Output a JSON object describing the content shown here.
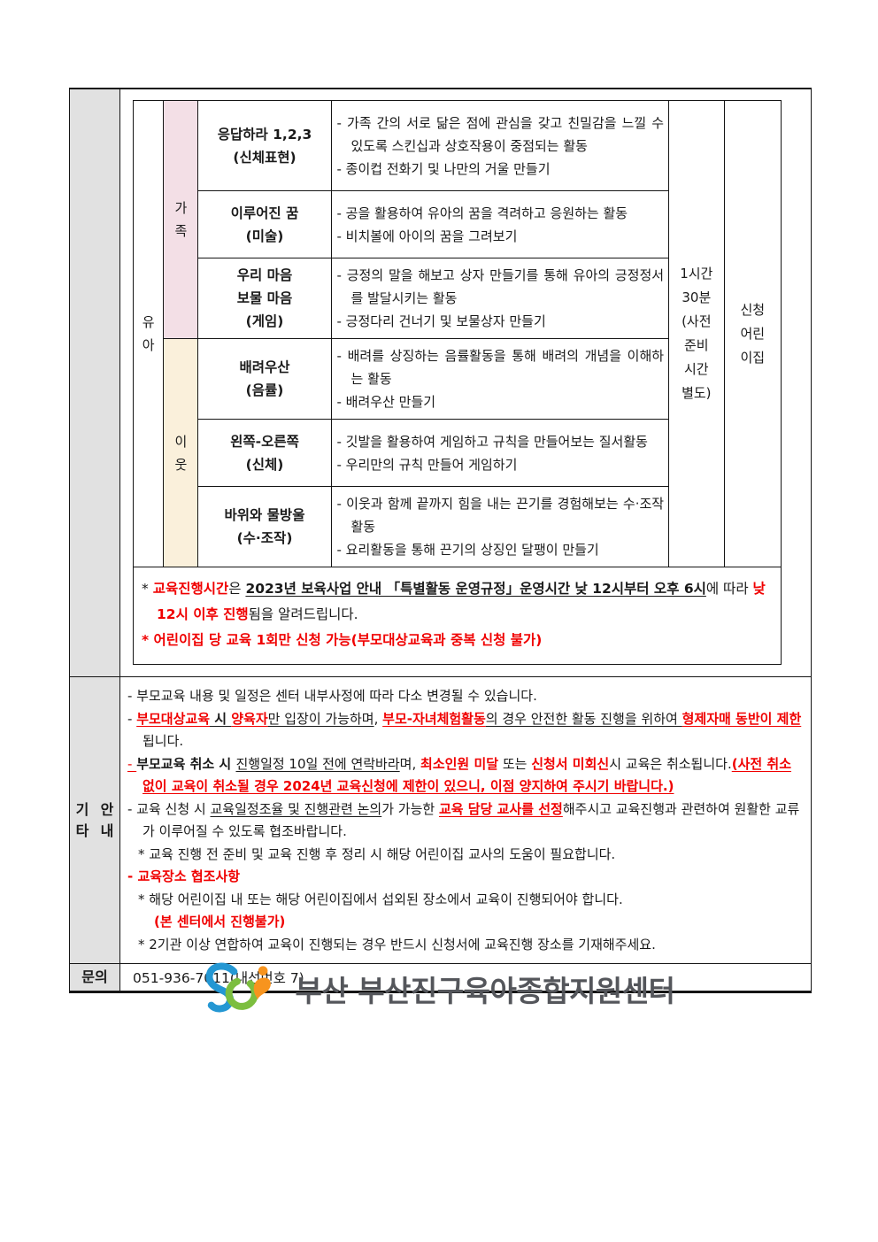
{
  "colors": {
    "accent_red": "#f00000",
    "family_row_pink": "#f3dfe6",
    "neighbor_row_cream": "#faf0db",
    "label_gray": "#e1e1e1",
    "logo_blue": "#2497d3",
    "logo_green": "#7cbe3f",
    "logo_orange": "#f7941e",
    "logo_text_gray": "#54565b"
  },
  "program_table": {
    "age_lines": [
      "유",
      "아"
    ],
    "groups": [
      {
        "label": "가족",
        "label_lines": [
          "가",
          "족"
        ]
      },
      {
        "label": "이웃",
        "label_lines": [
          "이",
          "웃"
        ]
      }
    ],
    "rows": [
      {
        "group": "가족",
        "name_lines": [
          "응답하라 1,2,3",
          "(신체표현)"
        ],
        "desc": [
          "- 가족 간의 서로 닮은 점에 관심을 갖고 친밀감을 느낄 수 있도록 스킨십과 상호작용이 중점되는 활동",
          "- 종이컵 전화기 및 나만의 거울 만들기"
        ]
      },
      {
        "group": "가족",
        "name_lines": [
          "이루어진 꿈",
          "(미술)"
        ],
        "desc": [
          "- 공을 활용하여 유아의 꿈을 격려하고 응원하는 활동",
          "- 비치볼에 아이의 꿈을 그려보기"
        ]
      },
      {
        "group": "가족",
        "name_lines": [
          "우리 마음",
          "보물 마음",
          "(게임)"
        ],
        "desc": [
          "- 긍정의 말을 해보고 상자 만들기를 통해 유아의 긍정정서를 발달시키는 활동",
          "- 긍정다리 건너기 및 보물상자 만들기"
        ]
      },
      {
        "group": "이웃",
        "name_lines": [
          "배려우산",
          "(음률)"
        ],
        "desc": [
          "- 배려를 상징하는 음률활동을 통해 배려의 개념을 이해하는 활동",
          "- 배려우산 만들기"
        ]
      },
      {
        "group": "이웃",
        "name_lines": [
          "왼쪽-오른쪽",
          "(신체)"
        ],
        "desc": [
          "- 깃발을 활용하여 게임하고 규칙을 만들어보는 질서활동",
          "- 우리만의 규칙 만들어 게임하기"
        ]
      },
      {
        "group": "이웃",
        "name_lines": [
          "바위와 물방울",
          "(수·조작)"
        ],
        "desc": [
          "- 이웃과 함께 끝까지 힘을 내는 끈기를 경험해보는 수·조작 활동",
          "- 요리활동을 통해 끈기의 상징인 달팽이 만들기"
        ]
      }
    ],
    "duration_lines": [
      "1시간",
      "30분",
      "(사전",
      "준비",
      "시간",
      "별도)"
    ],
    "apply_lines": [
      "신청",
      "어린",
      "이집"
    ],
    "notes": [
      {
        "segments": [
          {
            "t": "* "
          },
          {
            "t": "교육진행시간",
            "r": true,
            "b": true
          },
          {
            "t": "은 "
          },
          {
            "t": "2023년 보육사업 안내 「특별활동 운영규정」운영시간 낮 12시부터 오후 6시",
            "b": true,
            "u": true
          },
          {
            "t": "에 따라 "
          },
          {
            "t": "낮 12시 이후 진행",
            "r": true,
            "b": true
          },
          {
            "t": "됨을 알려드립니다."
          }
        ]
      },
      {
        "segments": [
          {
            "t": "* 어린이집 당 교육 1회만 신청 가능(부모대상교육과 중복 신청 불가)",
            "r": true,
            "b": true
          }
        ]
      }
    ]
  },
  "misc_info": {
    "label": "기타 안내",
    "label_lines": [
      "기타",
      "안내"
    ],
    "lines": [
      {
        "segments": [
          {
            "t": "- 부모교육 내용 및 일정은 센터 내부사정에 따라 다소 변경될 수 있습니다."
          }
        ]
      },
      {
        "segments": [
          {
            "t": "- "
          },
          {
            "t": "부모대상교육",
            "r": true,
            "b": true,
            "u": true
          },
          {
            "t": " 시 ",
            "b": true,
            "u": true
          },
          {
            "t": "양육자",
            "r": true,
            "b": true,
            "u": true
          },
          {
            "t": "만 입장이 가능하며",
            "u": true
          },
          {
            "t": ", "
          },
          {
            "t": "부모-자녀체험활동",
            "r": true,
            "b": true,
            "u": true
          },
          {
            "t": "의 경우 안전한 활동 진행을 위하여 ",
            "u": true
          },
          {
            "t": "형제자매 동반이 제한",
            "r": true,
            "b": true,
            "u": true
          },
          {
            "t": "됩니다."
          }
        ]
      },
      {
        "segments": [
          {
            "t": "- ",
            "r": true,
            "u": true
          },
          {
            "t": "부모교육 취소 시 ",
            "b": true
          },
          {
            "t": "진행일정 10일 전에 연락바라",
            "u": true
          },
          {
            "t": "며, "
          },
          {
            "t": "최소인원 미달",
            "r": true,
            "b": true
          },
          {
            "t": " 또는 "
          },
          {
            "t": "신청서 미회신",
            "r": true,
            "b": true
          },
          {
            "t": "시 교육은 취소됩니다."
          },
          {
            "t": "(사전 취소 없이 교육이 취소될 경우 2024년 교육신청에 제한이 있으니, 이점 양지하여 주시기 바랍니다.)",
            "r": true,
            "b": true,
            "u": true
          }
        ]
      },
      {
        "segments": [
          {
            "t": "- 교육 신청 시 "
          },
          {
            "t": "교육일정조율 및 진행관련 논의",
            "u": true
          },
          {
            "t": "가 가능한 "
          },
          {
            "t": "교육 담당 교사를 선정",
            "r": true,
            "b": true,
            "u": true
          },
          {
            "t": "해주시고 교육진행과 관련하여 원활한 교류가 이루어질 수 있도록 협조바랍니다."
          }
        ]
      },
      {
        "segments": [
          {
            "t": "* 교육 진행 전 준비 및 교육 진행 후 정리 시 해당 어린이집 교사의 도움이 필요합니다."
          }
        ]
      },
      {
        "segments": [
          {
            "t": "- 교육장소 협조사항",
            "r": true,
            "b": true
          }
        ]
      },
      {
        "segments": [
          {
            "t": "* 해당 어린이집 내 또는 해당 어린이집에서 섭외된 장소에서 교육이 진행되어야 합니다."
          }
        ]
      },
      {
        "segments": [
          {
            "t": "(본 센터에서 진행불가)",
            "r": true,
            "b": true
          }
        ]
      },
      {
        "segments": [
          {
            "t": "* 2기관 이상 연합하여 교육이 진행되는 경우 반드시 신청서에 교육진행 장소를 기재해주세요."
          }
        ]
      }
    ]
  },
  "contact": {
    "label": "문의",
    "value": "051-936-7011(내선번호 7)"
  },
  "footer_logo": {
    "text": "부산 부산진구육아종합지원센터"
  }
}
